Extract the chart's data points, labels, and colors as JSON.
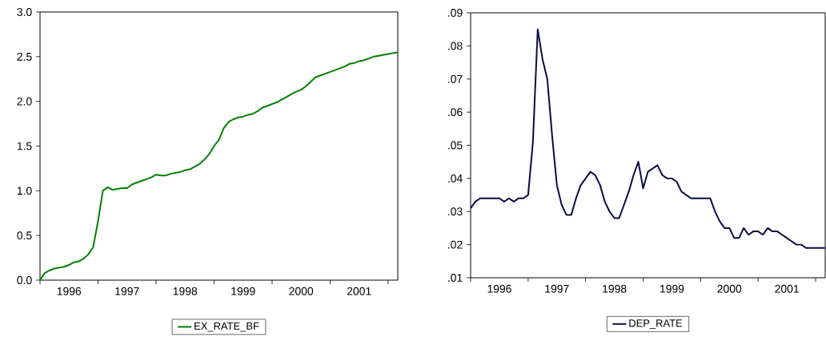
{
  "chart_data": [
    {
      "type": "line",
      "legend": "bottom",
      "marker": "none",
      "line_style": "solid",
      "x": [
        "1996-01",
        "1996-02",
        "1996-03",
        "1996-04",
        "1996-05",
        "1996-06",
        "1996-07",
        "1996-08",
        "1996-09",
        "1996-10",
        "1996-11",
        "1996-12",
        "1997-01",
        "1997-02",
        "1997-03",
        "1997-04",
        "1997-05",
        "1997-06",
        "1997-07",
        "1997-08",
        "1997-09",
        "1997-10",
        "1997-11",
        "1997-12",
        "1998-01",
        "1998-02",
        "1998-03",
        "1998-04",
        "1998-05",
        "1998-06",
        "1998-07",
        "1998-08",
        "1998-09",
        "1998-10",
        "1998-11",
        "1998-12",
        "1999-01",
        "1999-02",
        "1999-03",
        "1999-04",
        "1999-05",
        "1999-06",
        "1999-07",
        "1999-08",
        "1999-09",
        "1999-10",
        "1999-11",
        "1999-12",
        "2000-01",
        "2000-02",
        "2000-03",
        "2000-04",
        "2000-05",
        "2000-06",
        "2000-07",
        "2000-08",
        "2000-09",
        "2000-10",
        "2000-11",
        "2000-12",
        "2001-01",
        "2001-02",
        "2001-03",
        "2001-04",
        "2001-05",
        "2001-06",
        "2001-07",
        "2001-08",
        "2001-09",
        "2001-10",
        "2001-11",
        "2001-12",
        "2002-01",
        "2002-02",
        "2002-03"
      ],
      "series": [
        {
          "name": "EX_RATE_BF",
          "color": "#008000",
          "values": [
            0.0,
            0.08,
            0.11,
            0.13,
            0.14,
            0.15,
            0.17,
            0.2,
            0.21,
            0.24,
            0.29,
            0.37,
            0.66,
            1.0,
            1.04,
            1.01,
            1.02,
            1.03,
            1.03,
            1.07,
            1.09,
            1.11,
            1.13,
            1.15,
            1.18,
            1.17,
            1.17,
            1.19,
            1.2,
            1.21,
            1.23,
            1.24,
            1.27,
            1.3,
            1.35,
            1.41,
            1.5,
            1.57,
            1.7,
            1.77,
            1.8,
            1.82,
            1.83,
            1.85,
            1.86,
            1.89,
            1.93,
            1.95,
            1.97,
            1.99,
            2.02,
            2.05,
            2.08,
            2.11,
            2.13,
            2.17,
            2.22,
            2.27,
            2.29,
            2.31,
            2.33,
            2.35,
            2.37,
            2.39,
            2.42,
            2.43,
            2.45,
            2.46,
            2.48,
            2.5,
            2.51,
            2.52,
            2.53,
            2.54,
            2.55
          ]
        }
      ],
      "xlim": [
        "1996-01",
        "2002-03"
      ],
      "xticks": [
        {
          "value": "1996-01",
          "label": null
        },
        {
          "value": "1997-01",
          "label": null
        },
        {
          "value": "1998-01",
          "label": null
        },
        {
          "value": "1999-01",
          "label": null
        },
        {
          "value": "2000-01",
          "label": null
        },
        {
          "value": "2001-01",
          "label": null
        },
        {
          "value": "2002-01",
          "label": null
        },
        {
          "value": "1996-07",
          "label": "1996"
        },
        {
          "value": "1997-07",
          "label": "1997"
        },
        {
          "value": "1998-07",
          "label": "1998"
        },
        {
          "value": "1999-07",
          "label": "1999"
        },
        {
          "value": "2000-07",
          "label": "2000"
        },
        {
          "value": "2001-07",
          "label": "2001"
        }
      ],
      "ylim": [
        0,
        3
      ],
      "yticks": [
        {
          "value": 0,
          "label": "0.0"
        },
        {
          "value": 0.5,
          "label": "0.5"
        },
        {
          "value": 1,
          "label": "1.0"
        },
        {
          "value": 1.5,
          "label": "1.5"
        },
        {
          "value": 2,
          "label": "2.0"
        },
        {
          "value": 2.5,
          "label": "2.5"
        },
        {
          "value": 3,
          "label": "3.0"
        }
      ]
    },
    {
      "type": "line",
      "legend": "bottom",
      "marker": "none",
      "line_style": "solid",
      "x": [
        "1996-01",
        "1996-02",
        "1996-03",
        "1996-04",
        "1996-05",
        "1996-06",
        "1996-07",
        "1996-08",
        "1996-09",
        "1996-10",
        "1996-11",
        "1996-12",
        "1997-01",
        "1997-02",
        "1997-03",
        "1997-04",
        "1997-05",
        "1997-06",
        "1997-07",
        "1997-08",
        "1997-09",
        "1997-10",
        "1997-11",
        "1997-12",
        "1998-01",
        "1998-02",
        "1998-03",
        "1998-04",
        "1998-05",
        "1998-06",
        "1998-07",
        "1998-08",
        "1998-09",
        "1998-10",
        "1998-11",
        "1998-12",
        "1999-01",
        "1999-02",
        "1999-03",
        "1999-04",
        "1999-05",
        "1999-06",
        "1999-07",
        "1999-08",
        "1999-09",
        "1999-10",
        "1999-11",
        "1999-12",
        "2000-01",
        "2000-02",
        "2000-03",
        "2000-04",
        "2000-05",
        "2000-06",
        "2000-07",
        "2000-08",
        "2000-09",
        "2000-10",
        "2000-11",
        "2000-12",
        "2001-01",
        "2001-02",
        "2001-03",
        "2001-04",
        "2001-05",
        "2001-06",
        "2001-07",
        "2001-08",
        "2001-09",
        "2001-10",
        "2001-11",
        "2001-12",
        "2002-01",
        "2002-02",
        "2002-03"
      ],
      "series": [
        {
          "name": "DEP_RATE",
          "color": "#0a0a45",
          "values": [
            0.031,
            0.033,
            0.034,
            0.034,
            0.034,
            0.034,
            0.034,
            0.033,
            0.034,
            0.033,
            0.034,
            0.034,
            0.035,
            0.051,
            0.085,
            0.076,
            0.07,
            0.053,
            0.038,
            0.032,
            0.029,
            0.029,
            0.034,
            0.038,
            0.04,
            0.042,
            0.041,
            0.038,
            0.033,
            0.03,
            0.028,
            0.028,
            0.032,
            0.036,
            0.041,
            0.045,
            0.037,
            0.042,
            0.043,
            0.044,
            0.041,
            0.04,
            0.04,
            0.039,
            0.036,
            0.035,
            0.034,
            0.034,
            0.034,
            0.034,
            0.034,
            0.03,
            0.027,
            0.025,
            0.025,
            0.022,
            0.022,
            0.025,
            0.023,
            0.024,
            0.024,
            0.023,
            0.025,
            0.024,
            0.024,
            0.023,
            0.022,
            0.021,
            0.02,
            0.02,
            0.019,
            0.019,
            0.019,
            0.019,
            0.019
          ]
        }
      ],
      "xlim": [
        "1996-01",
        "2002-03"
      ],
      "xticks": [
        {
          "value": "1996-01",
          "label": null
        },
        {
          "value": "1997-01",
          "label": null
        },
        {
          "value": "1998-01",
          "label": null
        },
        {
          "value": "1999-01",
          "label": null
        },
        {
          "value": "2000-01",
          "label": null
        },
        {
          "value": "2001-01",
          "label": null
        },
        {
          "value": "2002-01",
          "label": null
        },
        {
          "value": "1996-07",
          "label": "1996"
        },
        {
          "value": "1997-07",
          "label": "1997"
        },
        {
          "value": "1998-07",
          "label": "1998"
        },
        {
          "value": "1999-07",
          "label": "1999"
        },
        {
          "value": "2000-07",
          "label": "2000"
        },
        {
          "value": "2001-07",
          "label": "2001"
        }
      ],
      "ylim": [
        0.01,
        0.09
      ],
      "yticks": [
        {
          "value": 0.01,
          "label": ".01"
        },
        {
          "value": 0.02,
          "label": ".02"
        },
        {
          "value": 0.03,
          "label": ".03"
        },
        {
          "value": 0.04,
          "label": ".04"
        },
        {
          "value": 0.05,
          "label": ".05"
        },
        {
          "value": 0.06,
          "label": ".06"
        },
        {
          "value": 0.07,
          "label": ".07"
        },
        {
          "value": 0.08,
          "label": ".08"
        },
        {
          "value": 0.09,
          "label": ".09"
        }
      ]
    }
  ]
}
